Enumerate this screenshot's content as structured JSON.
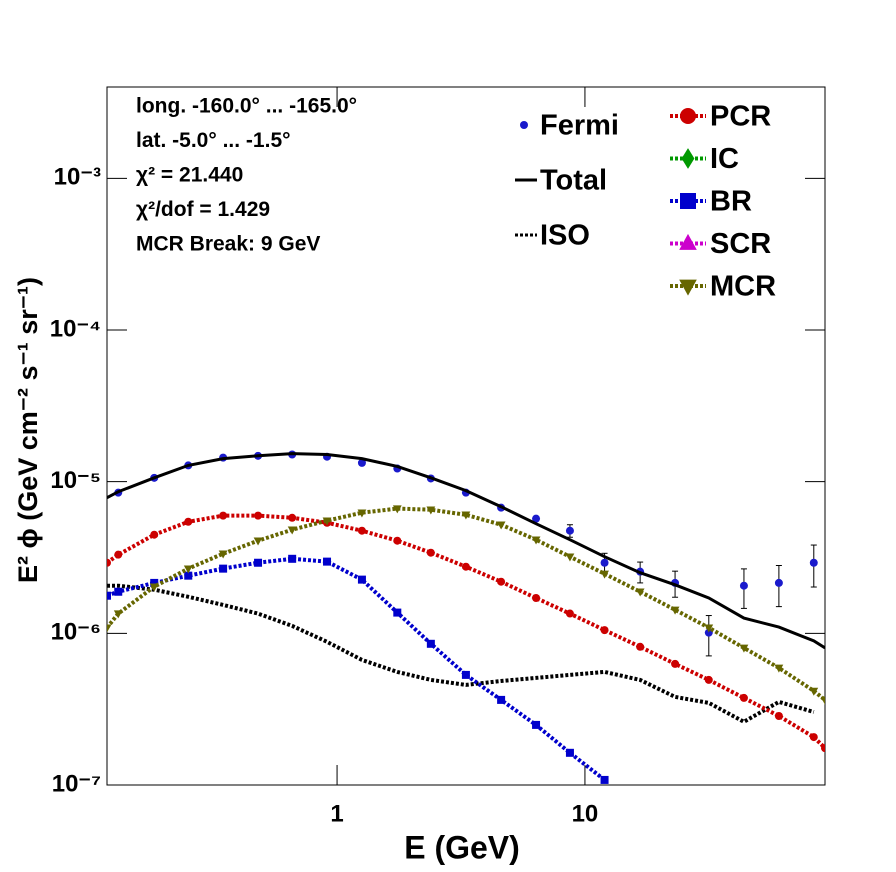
{
  "chart_data": {
    "type": "line",
    "annotations": [
      "long. -160.0° ... -165.0°",
      "lat. -5.0° ... -1.5°",
      "χ² = 21.440",
      "χ²/dof = 1.429",
      "MCR Break:  9 GeV"
    ],
    "x_label": "E (GeV)",
    "y_label": "E² ϕ (GeV cm⁻² s⁻¹ sr⁻¹)",
    "x_log": true,
    "y_log": true,
    "xlim": [
      0.118,
      93
    ],
    "ylim": [
      1e-07,
      0.004
    ],
    "xticks": [
      1,
      10
    ],
    "yticks": [
      {
        "value": 1e-07,
        "label": "10⁻⁷"
      },
      {
        "value": 1e-06,
        "label": "10⁻⁶"
      },
      {
        "value": 1e-05,
        "label": "10⁻⁵"
      },
      {
        "value": 0.0001,
        "label": "10⁻⁴"
      },
      {
        "value": 0.001,
        "label": "10⁻³"
      }
    ],
    "x": [
      0.118,
      0.131,
      0.183,
      0.251,
      0.347,
      0.48,
      0.659,
      0.911,
      1.26,
      1.75,
      2.39,
      3.31,
      4.59,
      6.35,
      8.7,
      12.0,
      16.7,
      23.1,
      31.6,
      43.8,
      60.6,
      83.8,
      93
    ],
    "series": [
      {
        "name": "Fermi",
        "color": "#1a1acc",
        "style": "points",
        "marker": "circle",
        "values": [
          null,
          8.46e-06,
          1.06e-05,
          1.28e-05,
          1.44e-05,
          1.48e-05,
          1.51e-05,
          1.46e-05,
          1.33e-05,
          1.22e-05,
          1.05e-05,
          8.46e-06,
          6.74e-06,
          5.7e-06,
          4.75e-06,
          2.92e-06,
          2.55e-06,
          2.15e-06,
          1.01e-06,
          2.06e-06,
          2.15e-06,
          2.92e-06,
          null
        ],
        "errors": [
          null,
          1e-07,
          1e-07,
          1e-07,
          1e-07,
          1e-07,
          1e-07,
          1e-07,
          1e-07,
          1e-07,
          1e-07,
          1e-07,
          1e-07,
          2e-07,
          4.5e-07,
          4.5e-07,
          4e-07,
          4.2e-07,
          3e-07,
          6e-07,
          6.5e-07,
          9e-07,
          null
        ]
      },
      {
        "name": "Total",
        "color": "#000000",
        "style": "solid",
        "values": [
          7.84e-06,
          8.59e-06,
          1.06e-05,
          1.28e-05,
          1.42e-05,
          1.48e-05,
          1.53e-05,
          1.51e-05,
          1.42e-05,
          1.26e-05,
          1.06e-05,
          8.73e-06,
          6.84e-06,
          5.28e-06,
          4.14e-06,
          3.2e-06,
          2.51e-06,
          2.09e-06,
          1.71e-06,
          1.26e-06,
          1.1e-06,
          8.92e-07,
          8.02e-07
        ]
      },
      {
        "name": "ISO",
        "color": "#000000",
        "style": "dotted",
        "values": [
          2.06e-06,
          2.06e-06,
          1.94e-06,
          1.74e-06,
          1.54e-06,
          1.35e-06,
          1.12e-06,
          8.79e-07,
          6.68e-07,
          5.57e-07,
          4.93e-07,
          4.57e-07,
          4.85e-07,
          5.08e-07,
          5.32e-07,
          5.57e-07,
          4.93e-07,
          3.81e-07,
          3.48e-07,
          2.61e-07,
          3.53e-07,
          3.03e-07,
          null
        ]
      },
      {
        "name": "PCR",
        "color": "#cc0000",
        "style": "dotted",
        "marker": "circle",
        "values": [
          2.92e-06,
          3.3e-06,
          4.47e-06,
          5.44e-06,
          5.97e-06,
          5.97e-06,
          5.78e-06,
          5.36e-06,
          4.75e-06,
          4.08e-06,
          3.4e-06,
          2.75e-06,
          2.19e-06,
          1.71e-06,
          1.35e-06,
          1.05e-06,
          8.15e-07,
          6.29e-07,
          4.93e-07,
          3.75e-07,
          2.85e-07,
          2.07e-07,
          1.75e-07
        ]
      },
      {
        "name": "IC",
        "color": "#009900",
        "style": "dotted",
        "marker": "diamond",
        "values": [
          null,
          null,
          null,
          null,
          null,
          null,
          null,
          null,
          null,
          null,
          null,
          null,
          null,
          null,
          null,
          null,
          null,
          null,
          null,
          null,
          null,
          null,
          null
        ]
      },
      {
        "name": "BR",
        "color": "#0000cc",
        "style": "dotted",
        "marker": "square",
        "values": [
          1.77e-06,
          1.88e-06,
          2.15e-06,
          2.4e-06,
          2.67e-06,
          2.92e-06,
          3.1e-06,
          2.97e-06,
          2.26e-06,
          1.37e-06,
          8.53e-07,
          5.32e-07,
          3.64e-07,
          2.49e-07,
          1.63e-07,
          1.08e-07,
          null,
          null,
          null,
          null,
          null,
          null,
          null
        ]
      },
      {
        "name": "SCR",
        "color": "#cc00cc",
        "style": "dotted",
        "marker": "triangle-up",
        "values": [
          null,
          null,
          null,
          null,
          null,
          null,
          null,
          null,
          null,
          null,
          null,
          null,
          null,
          null,
          null,
          null,
          null,
          null,
          null,
          null,
          null,
          null,
          null
        ]
      },
      {
        "name": "MCR",
        "color": "#666600",
        "style": "dotted",
        "marker": "triangle-down",
        "values": [
          1.09e-06,
          1.35e-06,
          2.03e-06,
          2.67e-06,
          3.35e-06,
          4.08e-06,
          4.82e-06,
          5.53e-06,
          6.24e-06,
          6.64e-06,
          6.53e-06,
          6.05e-06,
          5.2e-06,
          4.14e-06,
          3.2e-06,
          2.47e-06,
          1.88e-06,
          1.43e-06,
          1.09e-06,
          8.02e-07,
          5.92e-07,
          4.17e-07,
          3.64e-07
        ]
      }
    ]
  }
}
